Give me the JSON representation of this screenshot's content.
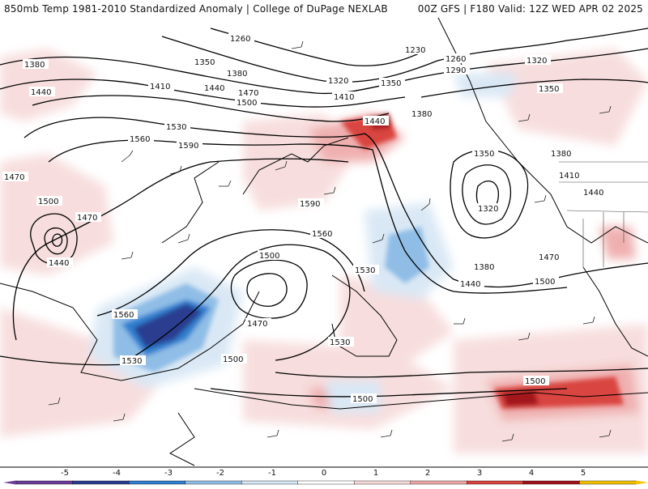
{
  "header": {
    "left_title": "850mb Temp 1981-2010 Standardized Anomaly | College of DuPage NEXLAB",
    "right_title": "00Z GFS | F180 Valid: 12Z WED APR 02 2025"
  },
  "contour_labels": [
    "1230",
    "1260",
    "1290",
    "1320",
    "1350",
    "1380",
    "1410",
    "1440",
    "1470",
    "1500",
    "1530",
    "1560",
    "1590"
  ],
  "colorbar": {
    "ticks": [
      "-5",
      "-4",
      "-3",
      "-2",
      "-1",
      "0",
      "1",
      "2",
      "3",
      "4",
      "5"
    ],
    "colors": {
      "m5": "#6a3d9a",
      "m4": "#2b3d8f",
      "m3": "#2f7fcf",
      "m2": "#8fbde6",
      "m1": "#d6e6f4",
      "zero": "#ffffff",
      "p1": "#f7dada",
      "p2": "#eea7a7",
      "p3": "#d9443f",
      "p4": "#a3121b",
      "p5": "#f2c200"
    }
  },
  "legend_colors": {
    "contour": "#000000",
    "coast": "#000000",
    "background": "#ffffff"
  }
}
